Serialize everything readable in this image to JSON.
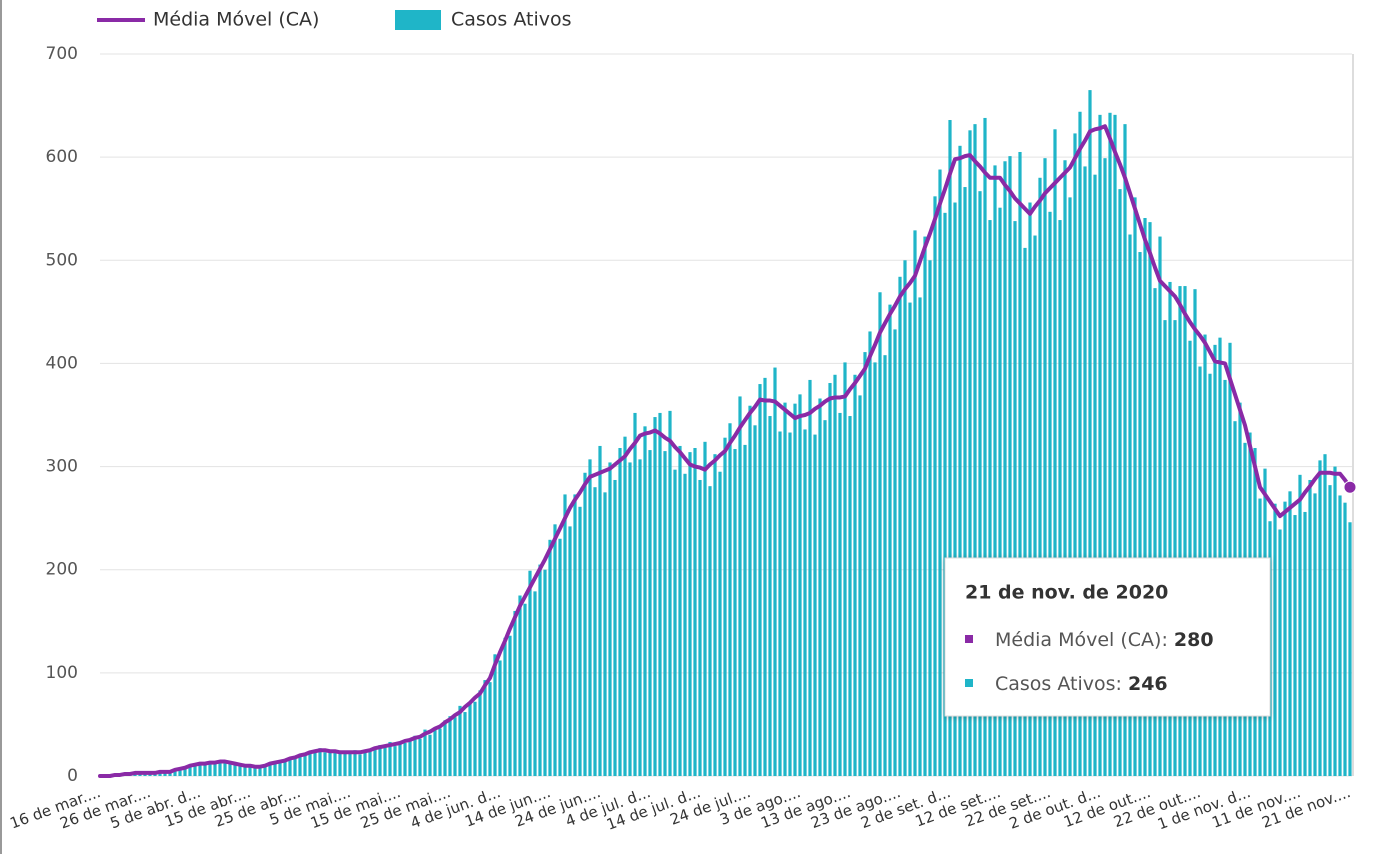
{
  "chart_data": {
    "type": "bar",
    "categories": [
      "16 de mar....",
      null,
      null,
      null,
      null,
      null,
      null,
      null,
      null,
      null,
      "26 de mar....",
      null,
      null,
      null,
      null,
      null,
      null,
      null,
      null,
      null,
      "5 de abr. d...",
      null,
      null,
      null,
      null,
      null,
      null,
      null,
      null,
      null,
      "15 de abr....",
      null,
      null,
      null,
      null,
      null,
      null,
      null,
      null,
      null,
      "25 de abr....",
      null,
      null,
      null,
      null,
      null,
      null,
      null,
      null,
      null,
      "5 de mai....",
      null,
      null,
      null,
      null,
      null,
      null,
      null,
      null,
      null,
      "15 de mai....",
      null,
      null,
      null,
      null,
      null,
      null,
      null,
      null,
      null,
      "25 de mai....",
      null,
      null,
      null,
      null,
      null,
      null,
      null,
      null,
      null,
      "4 de jun. d...",
      null,
      null,
      null,
      null,
      null,
      null,
      null,
      null,
      null,
      "14 de jun....",
      null,
      null,
      null,
      null,
      null,
      null,
      null,
      null,
      null,
      "24 de jun....",
      null,
      null,
      null,
      null,
      null,
      null,
      null,
      null,
      null,
      "4 de jul. d...",
      null,
      null,
      null,
      null,
      null,
      null,
      null,
      null,
      null,
      "14 de jul. d...",
      null,
      null,
      null,
      null,
      null,
      null,
      null,
      null,
      null,
      "24 de jul....",
      null,
      null,
      null,
      null,
      null,
      null,
      null,
      null,
      null,
      "3 de ago....",
      null,
      null,
      null,
      null,
      null,
      null,
      null,
      null,
      null,
      "13 de ago....",
      null,
      null,
      null,
      null,
      null,
      null,
      null,
      null,
      null,
      "23 de ago....",
      null,
      null,
      null,
      null,
      null,
      null,
      null,
      null,
      null,
      "2 de set. d...",
      null,
      null,
      null,
      null,
      null,
      null,
      null,
      null,
      null,
      "12 de set....",
      null,
      null,
      null,
      null,
      null,
      null,
      null,
      null,
      null,
      "22 de set....",
      null,
      null,
      null,
      null,
      null,
      null,
      null,
      null,
      null,
      "2 de out. d...",
      null,
      null,
      null,
      null,
      null,
      null,
      null,
      null,
      null,
      "12 de out....",
      null,
      null,
      null,
      null,
      null,
      null,
      null,
      null,
      null,
      "22 de out....",
      null,
      null,
      null,
      null,
      null,
      null,
      null,
      null,
      null,
      "1 de nov. d...",
      null,
      null,
      null,
      null,
      null,
      null,
      null,
      null,
      null,
      "11 de nov....",
      null,
      null,
      null,
      null,
      null,
      null,
      null,
      null,
      null,
      "21 de nov...."
    ],
    "series": [
      {
        "name": "Média Móvel (CA)",
        "type": "line",
        "color": "#8a2aa6",
        "values": [
          0,
          0,
          0,
          1,
          1,
          2,
          2,
          3,
          3,
          3,
          3,
          3,
          4,
          4,
          4,
          6,
          7,
          8,
          10,
          11,
          12,
          12,
          13,
          13,
          14,
          14,
          13,
          12,
          11,
          10,
          10,
          9,
          9,
          10,
          12,
          13,
          14,
          15,
          17,
          18,
          20,
          21,
          23,
          24,
          25,
          25,
          24,
          24,
          23,
          23,
          23,
          23,
          23,
          24,
          25,
          27,
          28,
          29,
          30,
          31,
          32,
          34,
          35,
          37,
          38,
          41,
          43,
          46,
          48,
          52,
          55,
          59,
          62,
          67,
          71,
          76,
          80,
          88,
          95,
          108,
          120,
          131,
          143,
          154,
          165,
          174,
          183,
          192,
          201,
          210,
          220,
          230,
          240,
          250,
          260,
          268,
          275,
          283,
          290,
          292,
          294,
          296,
          298,
          302,
          306,
          310,
          317,
          323,
          330,
          332,
          333,
          335,
          332,
          328,
          325,
          319,
          314,
          308,
          302,
          300,
          299,
          297,
          302,
          306,
          311,
          315,
          323,
          330,
          338,
          345,
          352,
          358,
          365,
          364,
          364,
          363,
          359,
          355,
          351,
          347,
          349,
          350,
          352,
          356,
          359,
          363,
          366,
          367,
          367,
          368,
          375,
          381,
          388,
          395,
          407,
          418,
          430,
          439,
          448,
          456,
          465,
          472,
          478,
          485,
          499,
          513,
          526,
          540,
          555,
          569,
          584,
          598,
          599,
          601,
          602,
          596,
          591,
          585,
          580,
          580,
          580,
          573,
          567,
          560,
          555,
          550,
          545,
          552,
          558,
          565,
          570,
          575,
          580,
          585,
          590,
          599,
          608,
          616,
          625,
          627,
          628,
          630,
          618,
          605,
          593,
          580,
          565,
          550,
          535,
          520,
          507,
          493,
          480,
          475,
          470,
          465,
          457,
          448,
          440,
          433,
          427,
          420,
          411,
          402,
          401,
          400,
          385,
          370,
          355,
          340,
          320,
          300,
          280,
          273,
          266,
          259,
          252,
          256,
          260,
          264,
          268,
          275,
          281,
          288,
          294,
          294,
          294,
          293,
          293,
          287,
          280
        ]
      },
      {
        "name": "Casos Ativos",
        "type": "bar",
        "color": "#1fb5c8",
        "values": [
          0,
          0,
          0,
          1,
          1,
          2,
          2,
          3,
          3,
          3,
          3,
          3,
          4,
          4,
          4,
          6,
          8,
          7,
          10,
          10,
          12,
          13,
          12,
          14,
          13,
          14,
          12,
          12,
          12,
          10,
          11,
          8,
          9,
          10,
          12,
          14,
          13,
          16,
          16,
          18,
          19,
          22,
          24,
          23,
          27,
          23,
          24,
          23,
          24,
          24,
          22,
          25,
          21,
          24,
          24,
          28,
          30,
          28,
          33,
          29,
          33,
          32,
          36,
          39,
          36,
          45,
          40,
          47,
          46,
          54,
          58,
          57,
          68,
          62,
          72,
          72,
          83,
          93,
          91,
          118,
          112,
          134,
          136,
          160,
          175,
          167,
          199,
          179,
          205,
          200,
          229,
          244,
          230,
          273,
          242,
          273,
          261,
          294,
          307,
          280,
          320,
          275,
          304,
          287,
          318,
          329,
          304,
          352,
          307,
          339,
          316,
          348,
          352,
          315,
          354,
          297,
          320,
          293,
          314,
          318,
          287,
          324,
          281,
          312,
          295,
          328,
          342,
          317,
          368,
          321,
          359,
          340,
          380,
          386,
          349,
          396,
          334,
          362,
          333,
          361,
          370,
          336,
          384,
          331,
          366,
          345,
          381,
          389,
          352,
          401,
          349,
          389,
          369,
          411,
          431,
          401,
          469,
          408,
          457,
          433,
          484,
          500,
          459,
          529,
          464,
          523,
          500,
          562,
          588,
          546,
          636,
          556,
          611,
          571,
          626,
          632,
          567,
          638,
          539,
          592,
          551,
          596,
          601,
          538,
          605,
          512,
          556,
          524,
          580,
          599,
          547,
          627,
          539,
          597,
          561,
          623,
          644,
          591,
          665,
          583,
          641,
          599,
          643,
          641,
          569,
          632,
          525,
          561,
          508,
          541,
          537,
          473,
          523,
          442,
          479,
          442,
          475,
          475,
          422,
          472,
          397,
          428,
          390,
          418,
          425,
          384,
          420,
          344,
          362,
          323,
          333,
          318,
          269,
          298,
          247,
          264,
          239,
          266,
          276,
          253,
          292,
          256,
          287,
          274,
          306,
          312,
          282,
          300,
          272,
          265,
          246
        ]
      }
    ],
    "ylim": [
      0,
      700
    ],
    "yticks": [
      0,
      100,
      200,
      300,
      400,
      500,
      600,
      700
    ],
    "grid": true,
    "tooltip": {
      "title": "21 de nov. de 2020"
    }
  }
}
